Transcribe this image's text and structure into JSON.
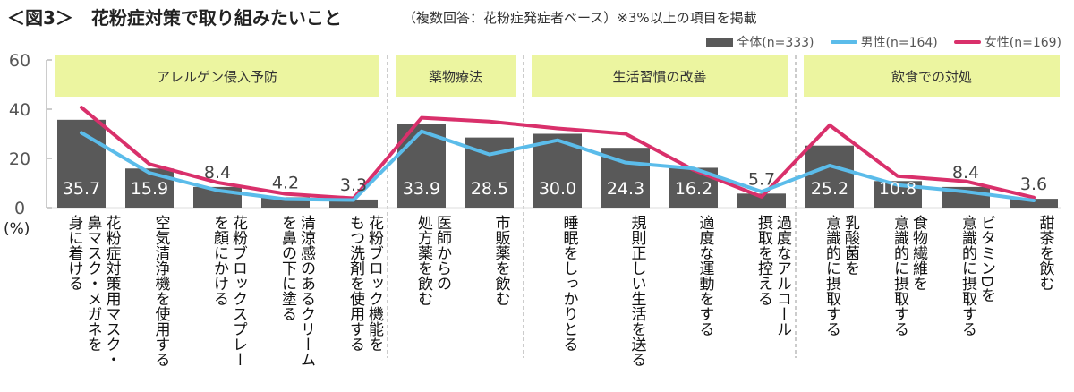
{
  "title": "＜図3＞　花粉症対策で取り組みたいこと",
  "subtitle": "（複数回答：花粉症発症者ベース）※3%以上の項目を掲載",
  "colors": {
    "total": "#595959",
    "male": "#5bbcea",
    "female": "#d9306b",
    "group_bg": "#ecf5a0"
  },
  "chart_data": {
    "type": "bar",
    "unit_label": "(%)",
    "ylim": [
      0,
      60
    ],
    "yticks": [
      "0",
      "20",
      "40",
      "60"
    ],
    "grid": false,
    "legend_position": "top-right",
    "groups": [
      {
        "label": "アレルゲン侵入予防",
        "count": 5
      },
      {
        "label": "薬物療法",
        "count": 2
      },
      {
        "label": "生活習慣の改善",
        "count": 4
      },
      {
        "label": "飲食での対処",
        "count": 4
      }
    ],
    "categories": [
      [
        "花粉症対策用マスク・",
        "鼻マスク・メガネを",
        "身に着ける"
      ],
      [
        "空気清浄機を使用する"
      ],
      [
        "花粉ブロックスプレー",
        "を顔にかける"
      ],
      [
        "清涼感のあるクリーム",
        "を鼻の下に塗る"
      ],
      [
        "花粉ブロック機能を",
        "もつ洗剤を使用する"
      ],
      [
        "医師からの",
        "処方薬を飲む"
      ],
      [
        "市販薬を飲む"
      ],
      [
        "睡眠をしっかりとる"
      ],
      [
        "規則正しい生活を送る"
      ],
      [
        "適度な運動をする"
      ],
      [
        "過度なアルコール",
        "摂取を控える"
      ],
      [
        "乳酸菌を",
        "意識的に摂取する"
      ],
      [
        "食物繊維を",
        "意識的に摂取する"
      ],
      [
        "ビタミンDを",
        "意識的に摂取する"
      ],
      [
        "甜茶を飲む"
      ]
    ],
    "series": [
      {
        "name": "全体(n=333)",
        "type": "bar",
        "values": [
          35.7,
          15.9,
          8.4,
          4.2,
          3.3,
          33.9,
          28.5,
          30.0,
          24.3,
          16.2,
          5.7,
          25.2,
          10.8,
          8.4,
          3.6
        ],
        "labels": [
          "35.7",
          "15.9",
          "8.4",
          "4.2",
          "3.3",
          "33.9",
          "28.5",
          "30.0",
          "24.3",
          "16.2",
          "5.7",
          "25.2",
          "10.8",
          "8.4",
          "3.6"
        ]
      },
      {
        "name": "男性(n=164)",
        "type": "line",
        "values": [
          30.4,
          14.1,
          7.0,
          3.4,
          3.1,
          31.0,
          21.6,
          27.4,
          18.3,
          15.9,
          6.5,
          17.1,
          9.2,
          6.5,
          2.9
        ]
      },
      {
        "name": "女性(n=169)",
        "type": "line",
        "values": [
          40.7,
          17.7,
          10.2,
          5.6,
          3.8,
          36.5,
          35.0,
          32.2,
          30.0,
          15.3,
          4.4,
          33.5,
          12.8,
          10.7,
          4.1
        ]
      }
    ]
  }
}
